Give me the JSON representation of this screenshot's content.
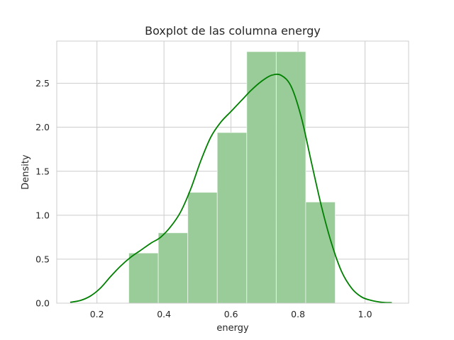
{
  "chart_data": {
    "type": "bar",
    "title": "Boxplot de las columna energy",
    "xlabel": "energy",
    "ylabel": "Density",
    "xlim": [
      0.08,
      1.13
    ],
    "ylim": [
      0,
      2.98
    ],
    "xticks": [
      0.2,
      0.4,
      0.6,
      0.8,
      1.0
    ],
    "xtick_labels": [
      "0.2",
      "0.4",
      "0.6",
      "0.8",
      "1.0"
    ],
    "yticks": [
      0.0,
      0.5,
      1.0,
      1.5,
      2.0,
      2.5
    ],
    "ytick_labels": [
      "0.0",
      "0.5",
      "1.0",
      "1.5",
      "2.0",
      "2.5"
    ],
    "grid": true,
    "histogram": {
      "bin_edges": [
        0.295,
        0.383,
        0.471,
        0.559,
        0.647,
        0.735,
        0.823,
        0.911
      ],
      "densities": [
        0.57,
        0.8,
        1.26,
        1.94,
        2.86,
        2.86,
        1.15
      ],
      "color": "#99cc99"
    },
    "kde": {
      "color": "#008000",
      "x": [
        0.12,
        0.15,
        0.18,
        0.21,
        0.24,
        0.27,
        0.3,
        0.33,
        0.36,
        0.39,
        0.42,
        0.45,
        0.48,
        0.51,
        0.54,
        0.57,
        0.6,
        0.63,
        0.66,
        0.69,
        0.72,
        0.75,
        0.78,
        0.81,
        0.84,
        0.87,
        0.9,
        0.93,
        0.96,
        0.99,
        1.02,
        1.05,
        1.08
      ],
      "y": [
        0.01,
        0.03,
        0.08,
        0.17,
        0.3,
        0.42,
        0.52,
        0.6,
        0.68,
        0.75,
        0.87,
        1.04,
        1.3,
        1.62,
        1.89,
        2.06,
        2.18,
        2.3,
        2.42,
        2.52,
        2.59,
        2.59,
        2.46,
        2.11,
        1.6,
        1.1,
        0.68,
        0.36,
        0.17,
        0.07,
        0.03,
        0.01,
        0.005
      ]
    }
  }
}
